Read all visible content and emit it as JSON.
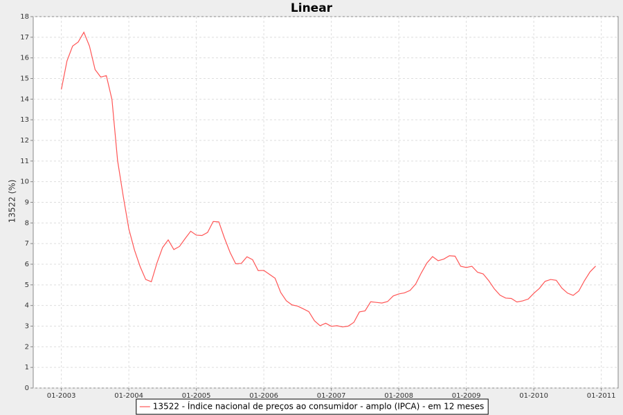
{
  "chart_data": {
    "type": "line",
    "title": "Linear",
    "y_label": "13522 (%)",
    "x": [
      "01-2003",
      "02-2003",
      "03-2003",
      "04-2003",
      "05-2003",
      "06-2003",
      "07-2003",
      "08-2003",
      "09-2003",
      "10-2003",
      "11-2003",
      "12-2003",
      "01-2004",
      "02-2004",
      "03-2004",
      "04-2004",
      "05-2004",
      "06-2004",
      "07-2004",
      "08-2004",
      "09-2004",
      "10-2004",
      "11-2004",
      "12-2004",
      "01-2005",
      "02-2005",
      "03-2005",
      "04-2005",
      "05-2005",
      "06-2005",
      "07-2005",
      "08-2005",
      "09-2005",
      "10-2005",
      "11-2005",
      "12-2005",
      "01-2006",
      "02-2006",
      "03-2006",
      "04-2006",
      "05-2006",
      "06-2006",
      "07-2006",
      "08-2006",
      "09-2006",
      "10-2006",
      "11-2006",
      "12-2006",
      "01-2007",
      "02-2007",
      "03-2007",
      "04-2007",
      "05-2007",
      "06-2007",
      "07-2007",
      "08-2007",
      "09-2007",
      "10-2007",
      "11-2007",
      "12-2007",
      "01-2008",
      "02-2008",
      "03-2008",
      "04-2008",
      "05-2008",
      "06-2008",
      "07-2008",
      "08-2008",
      "09-2008",
      "10-2008",
      "11-2008",
      "12-2008",
      "01-2009",
      "02-2009",
      "03-2009",
      "04-2009",
      "05-2009",
      "06-2009",
      "07-2009",
      "08-2009",
      "09-2009",
      "10-2009",
      "11-2009",
      "12-2009",
      "01-2010",
      "02-2010",
      "03-2010",
      "04-2010",
      "05-2010",
      "06-2010",
      "07-2010",
      "08-2010",
      "09-2010",
      "10-2010",
      "11-2010",
      "12-2010"
    ],
    "series": [
      {
        "name": "13522 - Índice nacional de preços ao consumidor - amplo (IPCA) - em 12 meses",
        "color": "#ff5555",
        "values": [
          14.47,
          15.85,
          16.57,
          16.77,
          17.24,
          16.57,
          15.43,
          15.07,
          15.14,
          13.98,
          11.02,
          9.3,
          7.71,
          6.69,
          5.89,
          5.26,
          5.15,
          6.06,
          6.81,
          7.18,
          6.71,
          6.86,
          7.24,
          7.6,
          7.41,
          7.39,
          7.54,
          8.07,
          8.05,
          7.27,
          6.57,
          6.02,
          6.04,
          6.36,
          6.22,
          5.69,
          5.7,
          5.51,
          5.32,
          4.63,
          4.23,
          4.03,
          3.97,
          3.84,
          3.7,
          3.26,
          3.02,
          3.14,
          2.99,
          3.02,
          2.96,
          3.0,
          3.18,
          3.69,
          3.74,
          4.18,
          4.15,
          4.12,
          4.19,
          4.46,
          4.56,
          4.61,
          4.73,
          5.04,
          5.58,
          6.06,
          6.37,
          6.17,
          6.25,
          6.41,
          6.39,
          5.9,
          5.84,
          5.9,
          5.61,
          5.53,
          5.2,
          4.8,
          4.5,
          4.36,
          4.34,
          4.17,
          4.22,
          4.31,
          4.59,
          4.83,
          5.17,
          5.26,
          5.22,
          4.84,
          4.6,
          4.49,
          4.7,
          5.2,
          5.63,
          5.91
        ]
      }
    ],
    "xlim": [
      "08-2002",
      "04-2011"
    ],
    "xticks": [
      "01-2003",
      "01-2004",
      "01-2005",
      "01-2006",
      "01-2007",
      "01-2008",
      "01-2009",
      "01-2010",
      "01-2011"
    ],
    "ylim": [
      0,
      18
    ],
    "yticks": [
      0,
      1,
      2,
      3,
      4,
      5,
      6,
      7,
      8,
      9,
      10,
      11,
      12,
      13,
      14,
      15,
      16,
      17,
      18
    ],
    "grid": true,
    "legend": "bottom"
  }
}
